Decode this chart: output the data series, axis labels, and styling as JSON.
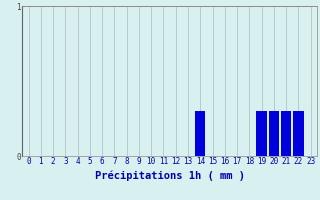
{
  "categories": [
    0,
    1,
    2,
    3,
    4,
    5,
    6,
    7,
    8,
    9,
    10,
    11,
    12,
    13,
    14,
    15,
    16,
    17,
    18,
    19,
    20,
    21,
    22,
    23
  ],
  "values": [
    0,
    0,
    0,
    0,
    0,
    0,
    0,
    0,
    0,
    0,
    0,
    0,
    0,
    0,
    0.3,
    0,
    0,
    0,
    0,
    0.3,
    0.3,
    0.3,
    0.3,
    0
  ],
  "bar_color": "#0000dd",
  "background_color": "#d8f0f0",
  "grid_color_h": "#cc8888",
  "grid_color_v": "#aabbbb",
  "xlabel": "Précipitations 1h ( mm )",
  "xlabel_color": "#0000aa",
  "ylabel_0": "0",
  "ylabel_1": "1",
  "ytick_color": "#444444",
  "xtick_color": "#0000aa",
  "ylim": [
    0,
    1.0
  ],
  "xlim": [
    -0.5,
    23.5
  ],
  "xlabel_fontsize": 7.5,
  "tick_fontsize": 5.5
}
